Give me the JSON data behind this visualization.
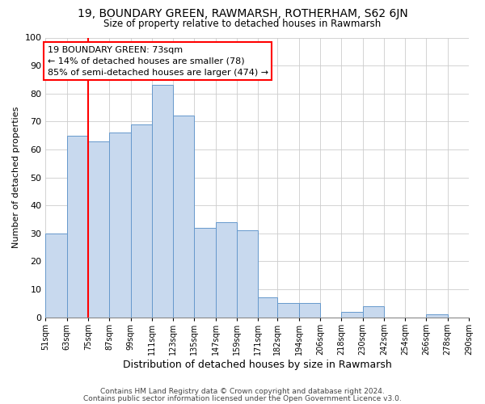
{
  "title": "19, BOUNDARY GREEN, RAWMARSH, ROTHERHAM, S62 6JN",
  "subtitle": "Size of property relative to detached houses in Rawmarsh",
  "xlabel": "Distribution of detached houses by size in Rawmarsh",
  "ylabel": "Number of detached properties",
  "bar_color": "#c8d9ee",
  "bar_edge_color": "#6699cc",
  "bin_edges": [
    51,
    63,
    75,
    87,
    99,
    111,
    123,
    135,
    147,
    159,
    171,
    182,
    194,
    206,
    218,
    230,
    242,
    254,
    266,
    278,
    290
  ],
  "bin_labels": [
    "51sqm",
    "63sqm",
    "75sqm",
    "87sqm",
    "99sqm",
    "111sqm",
    "123sqm",
    "135sqm",
    "147sqm",
    "159sqm",
    "171sqm",
    "182sqm",
    "194sqm",
    "206sqm",
    "218sqm",
    "230sqm",
    "242sqm",
    "254sqm",
    "266sqm",
    "278sqm",
    "290sqm"
  ],
  "counts": [
    30,
    65,
    63,
    66,
    69,
    83,
    72,
    32,
    34,
    31,
    7,
    5,
    5,
    0,
    2,
    4,
    0,
    0,
    1,
    0
  ],
  "ylim": [
    0,
    100
  ],
  "yticks": [
    0,
    10,
    20,
    30,
    40,
    50,
    60,
    70,
    80,
    90,
    100
  ],
  "red_line_x": 75,
  "annotation_title": "19 BOUNDARY GREEN: 73sqm",
  "annotation_line1": "← 14% of detached houses are smaller (78)",
  "annotation_line2": "85% of semi-detached houses are larger (474) →",
  "footer1": "Contains HM Land Registry data © Crown copyright and database right 2024.",
  "footer2": "Contains public sector information licensed under the Open Government Licence v3.0.",
  "background_color": "#ffffff",
  "grid_color": "#cccccc"
}
